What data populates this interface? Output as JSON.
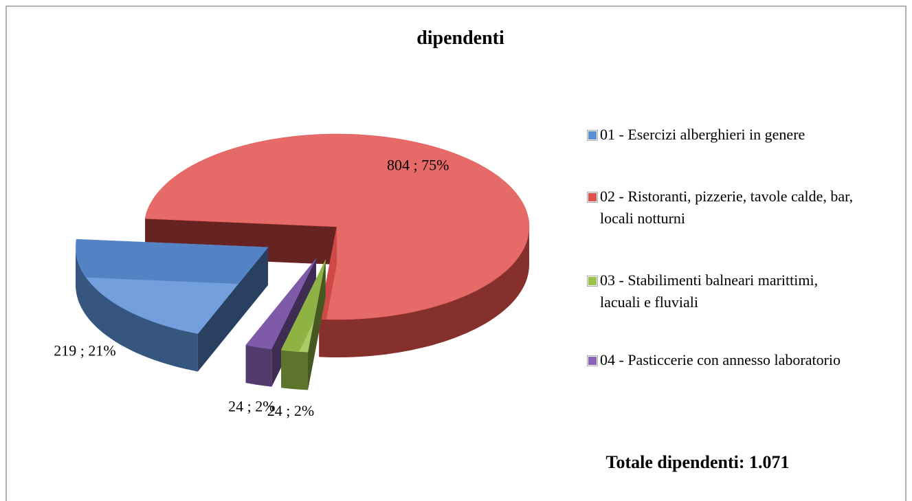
{
  "chart_data": {
    "type": "pie3d",
    "title": "dipendenti",
    "categories": [
      "01 - Esercizi alberghieri in genere",
      "02 - Ristoranti, pizzerie, tavole calde, bar, locali notturni",
      "03 - Stabilimenti balneari marittimi, lacuali e fluviali",
      "04 - Pasticcerie con annesso laboratorio"
    ],
    "values": [
      219,
      804,
      24,
      24
    ],
    "value_labels": [
      "219 ; 21%",
      "804 ; 75%",
      "24 ; 2%",
      "24 ; 2%"
    ],
    "colors": [
      "#5b8fd6",
      "#e0504d",
      "#9bc24a",
      "#8a63b8"
    ],
    "legend": "right",
    "annotation": "Totale dipendenti: 1.071"
  }
}
